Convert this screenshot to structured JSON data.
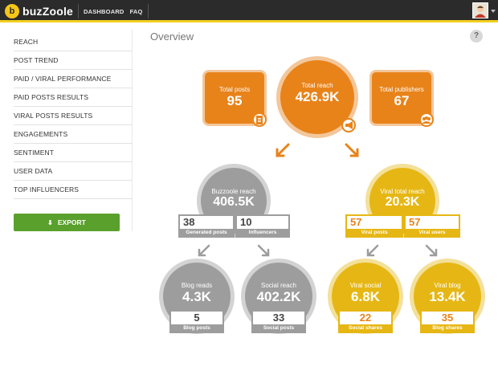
{
  "header": {
    "brand": "buzZoole",
    "nav": [
      "DASHBOARD",
      "FAQ"
    ]
  },
  "sidebar": {
    "items": [
      "REACH",
      "POST TREND",
      "PAID / VIRAL PERFORMANCE",
      "PAID POSTS RESULTS",
      "VIRAL POSTS RESULTS",
      "ENGAGEMENTS",
      "SENTIMENT",
      "USER DATA",
      "TOP INFLUENCERS"
    ],
    "export_label": "EXPORT"
  },
  "main": {
    "title": "Overview",
    "help": "?",
    "total_posts": {
      "label": "Total posts",
      "value": "95"
    },
    "total_reach": {
      "label": "Total reach",
      "value": "426.9K"
    },
    "total_publishers": {
      "label": "Total publishers",
      "value": "67"
    },
    "buzzoole_reach": {
      "label": "Buzzoole reach",
      "value": "406.5K",
      "generated_posts": "38",
      "generated_posts_label": "Generated posts",
      "influencers": "10",
      "influencers_label": "Influencers"
    },
    "viral_total_reach": {
      "label": "Viral total reach",
      "value": "20.3K",
      "viral_posts": "57",
      "viral_posts_label": "Viral posts",
      "viral_users": "57",
      "viral_users_label": "Viral users"
    },
    "blog_reads": {
      "label": "Blog reads",
      "value": "4.3K",
      "stat": "5",
      "stat_label": "Blog posts"
    },
    "social_reach": {
      "label": "Social reach",
      "value": "402.2K",
      "stat": "33",
      "stat_label": "Social posts"
    },
    "viral_social": {
      "label": "Viral social",
      "value": "6.8K",
      "stat": "22",
      "stat_label": "Social shares"
    },
    "viral_blog": {
      "label": "Viral blog",
      "value": "13.4K",
      "stat": "35",
      "stat_label": "Blog shares"
    }
  },
  "colors": {
    "orange": "#e8831a",
    "gray": "#9d9d9d",
    "yellow": "#e6b714",
    "export_green": "#5aa02c",
    "accent_bar": "#f2cf1f"
  }
}
